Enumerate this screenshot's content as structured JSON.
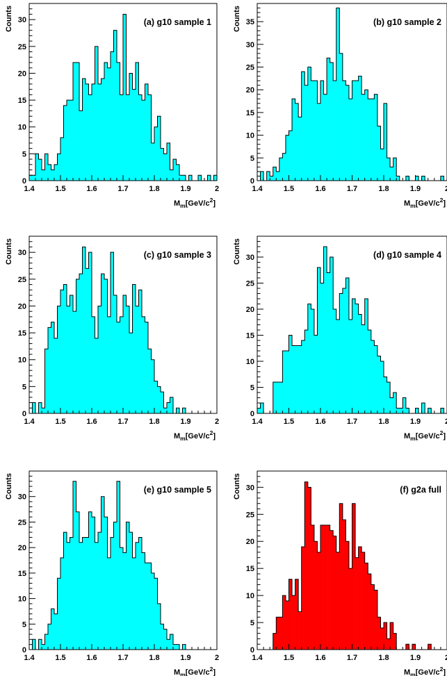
{
  "chart_data": [
    {
      "type": "histogram",
      "panel_label": "(a) g10 sample 1",
      "ylabel": "Counts",
      "xlabel": "M_m[GeV/c^2]",
      "xlim": [
        1.4,
        2.0
      ],
      "ylim": [
        0,
        33
      ],
      "xticks": [
        "1.4",
        "1.5",
        "1.6",
        "1.7",
        "1.8",
        "1.9",
        "2"
      ],
      "yticks": [
        "0",
        "5",
        "10",
        "15",
        "20",
        "25",
        "30"
      ],
      "fill_color": "#00ffff",
      "bin_width": 0.01,
      "bins_x0": 1.4,
      "counts": [
        1,
        1,
        5,
        4,
        2,
        5,
        3,
        2,
        3,
        5,
        8,
        14,
        15,
        15,
        22,
        22,
        13,
        19,
        18,
        16,
        18,
        25,
        18,
        19,
        22,
        21,
        24,
        28,
        22,
        16,
        31,
        16,
        20,
        17,
        22,
        16,
        15,
        18,
        16,
        7,
        10,
        12,
        6,
        5,
        7,
        2,
        4,
        3,
        1,
        1,
        0,
        1,
        0,
        0,
        1,
        0,
        0,
        1,
        0,
        1
      ]
    },
    {
      "type": "histogram",
      "panel_label": "(b) g10 sample 2",
      "ylabel": "Counts",
      "xlabel": "M_m[GeV/c^2]",
      "xlim": [
        1.4,
        2.0
      ],
      "ylim": [
        0,
        39
      ],
      "xticks": [
        "1.4",
        "1.5",
        "1.6",
        "1.7",
        "1.8",
        "1.9",
        "2"
      ],
      "yticks": [
        "0",
        "5",
        "10",
        "15",
        "20",
        "25",
        "30",
        "35"
      ],
      "fill_color": "#00ffff",
      "bin_width": 0.01,
      "bins_x0": 1.4,
      "counts": [
        0,
        2,
        0,
        2,
        1,
        3,
        2,
        5,
        6,
        10,
        11,
        18,
        17,
        14,
        24,
        21,
        25,
        22,
        22,
        17,
        22,
        19,
        27,
        26,
        22,
        38,
        28,
        22,
        21,
        18,
        22,
        22,
        23,
        19,
        20,
        18,
        18,
        19,
        12,
        7,
        17,
        5,
        3,
        5,
        1,
        0,
        0,
        1,
        0,
        0,
        1,
        0,
        1,
        0,
        0,
        0,
        0,
        0,
        1,
        0
      ]
    },
    {
      "type": "histogram",
      "panel_label": "(c) g10 sample 3",
      "ylabel": "Counts",
      "xlabel": "M_m[GeV/c^2]",
      "xlim": [
        1.4,
        2.0
      ],
      "ylim": [
        0,
        33
      ],
      "xticks": [
        "1.4",
        "1.5",
        "1.6",
        "1.7",
        "1.8",
        "1.9",
        "2"
      ],
      "yticks": [
        "0",
        "5",
        "10",
        "15",
        "20",
        "25",
        "30"
      ],
      "fill_color": "#00ffff",
      "bin_width": 0.01,
      "bins_x0": 1.4,
      "counts": [
        0,
        2,
        0,
        2,
        1,
        12,
        16,
        17,
        14,
        20,
        23,
        24,
        20,
        22,
        19,
        25,
        26,
        31,
        27,
        30,
        18,
        14,
        20,
        26,
        25,
        18,
        30,
        22,
        17,
        18,
        22,
        20,
        15,
        24,
        20,
        23,
        18,
        17,
        12,
        10,
        6,
        5,
        4,
        1,
        2,
        3,
        0,
        1,
        0,
        1,
        0,
        0,
        0,
        0,
        0,
        0,
        0,
        0,
        0,
        0
      ]
    },
    {
      "type": "histogram",
      "panel_label": "(d) g10 sample 4",
      "ylabel": "Counts",
      "xlabel": "M_m[GeV/c^2]",
      "xlim": [
        1.4,
        2.0
      ],
      "ylim": [
        0,
        34
      ],
      "xticks": [
        "1.4",
        "1.5",
        "1.6",
        "1.7",
        "1.8",
        "1.9",
        "2"
      ],
      "yticks": [
        "0",
        "5",
        "10",
        "15",
        "20",
        "25",
        "30"
      ],
      "fill_color": "#00ffff",
      "bin_width": 0.01,
      "bins_x0": 1.4,
      "counts": [
        1,
        2,
        0,
        0,
        0,
        6,
        6,
        6,
        12,
        12,
        15,
        13,
        13,
        13,
        14,
        16,
        21,
        20,
        15,
        28,
        25,
        32,
        27,
        30,
        20,
        18,
        23,
        24,
        26,
        18,
        22,
        21,
        19,
        17,
        22,
        16,
        14,
        13,
        11,
        10,
        7,
        6,
        3,
        4,
        1,
        1,
        3,
        1,
        0,
        0,
        1,
        0,
        2,
        0,
        1,
        0,
        0,
        0,
        1,
        0
      ]
    },
    {
      "type": "histogram",
      "panel_label": "(e) g10 sample 5",
      "ylabel": "Counts",
      "xlabel": "M_m[GeV/c^2]",
      "xlim": [
        1.4,
        2.0
      ],
      "ylim": [
        0,
        35
      ],
      "xticks": [
        "1.4",
        "1.5",
        "1.6",
        "1.7",
        "1.8",
        "1.9",
        "2"
      ],
      "yticks": [
        "0",
        "5",
        "10",
        "15",
        "20",
        "25",
        "30"
      ],
      "fill_color": "#00ffff",
      "bin_width": 0.01,
      "bins_x0": 1.4,
      "counts": [
        0,
        2,
        0,
        2,
        1,
        3,
        5,
        8,
        7,
        14,
        18,
        23,
        21,
        22,
        33,
        27,
        21,
        22,
        22,
        27,
        26,
        21,
        23,
        30,
        26,
        18,
        22,
        25,
        33,
        20,
        19,
        25,
        23,
        18,
        21,
        22,
        19,
        17,
        17,
        15,
        14,
        9,
        5,
        4,
        2,
        3,
        1,
        1,
        0,
        1,
        0,
        0,
        0,
        0,
        0,
        0,
        0,
        0,
        0,
        0
      ]
    },
    {
      "type": "histogram",
      "panel_label": "(f) g2a full",
      "ylabel": "Counts",
      "xlabel": "M_m[GeV/c^2]",
      "xlim": [
        1.4,
        2.0
      ],
      "ylim": [
        0,
        33
      ],
      "xticks": [
        "1.4",
        "1.5",
        "1.6",
        "1.7",
        "1.8",
        "1.9",
        "2"
      ],
      "yticks": [
        "0",
        "5",
        "10",
        "15",
        "20",
        "25",
        "30"
      ],
      "fill_color": "#ff0000",
      "bin_width": 0.01,
      "bins_x0": 1.4,
      "counts": [
        0,
        0,
        0,
        0,
        0,
        3,
        6,
        6,
        10,
        9,
        13,
        10,
        13,
        7,
        19,
        31,
        30,
        23,
        20,
        18,
        23,
        23,
        23,
        22,
        21,
        18,
        27,
        24,
        20,
        15,
        27,
        17,
        19,
        18,
        16,
        14,
        12,
        11,
        6,
        4,
        5,
        2,
        5,
        3,
        0,
        0,
        0,
        1,
        0,
        1,
        0,
        0,
        0,
        0,
        1,
        0,
        0,
        0,
        0,
        0
      ]
    }
  ]
}
